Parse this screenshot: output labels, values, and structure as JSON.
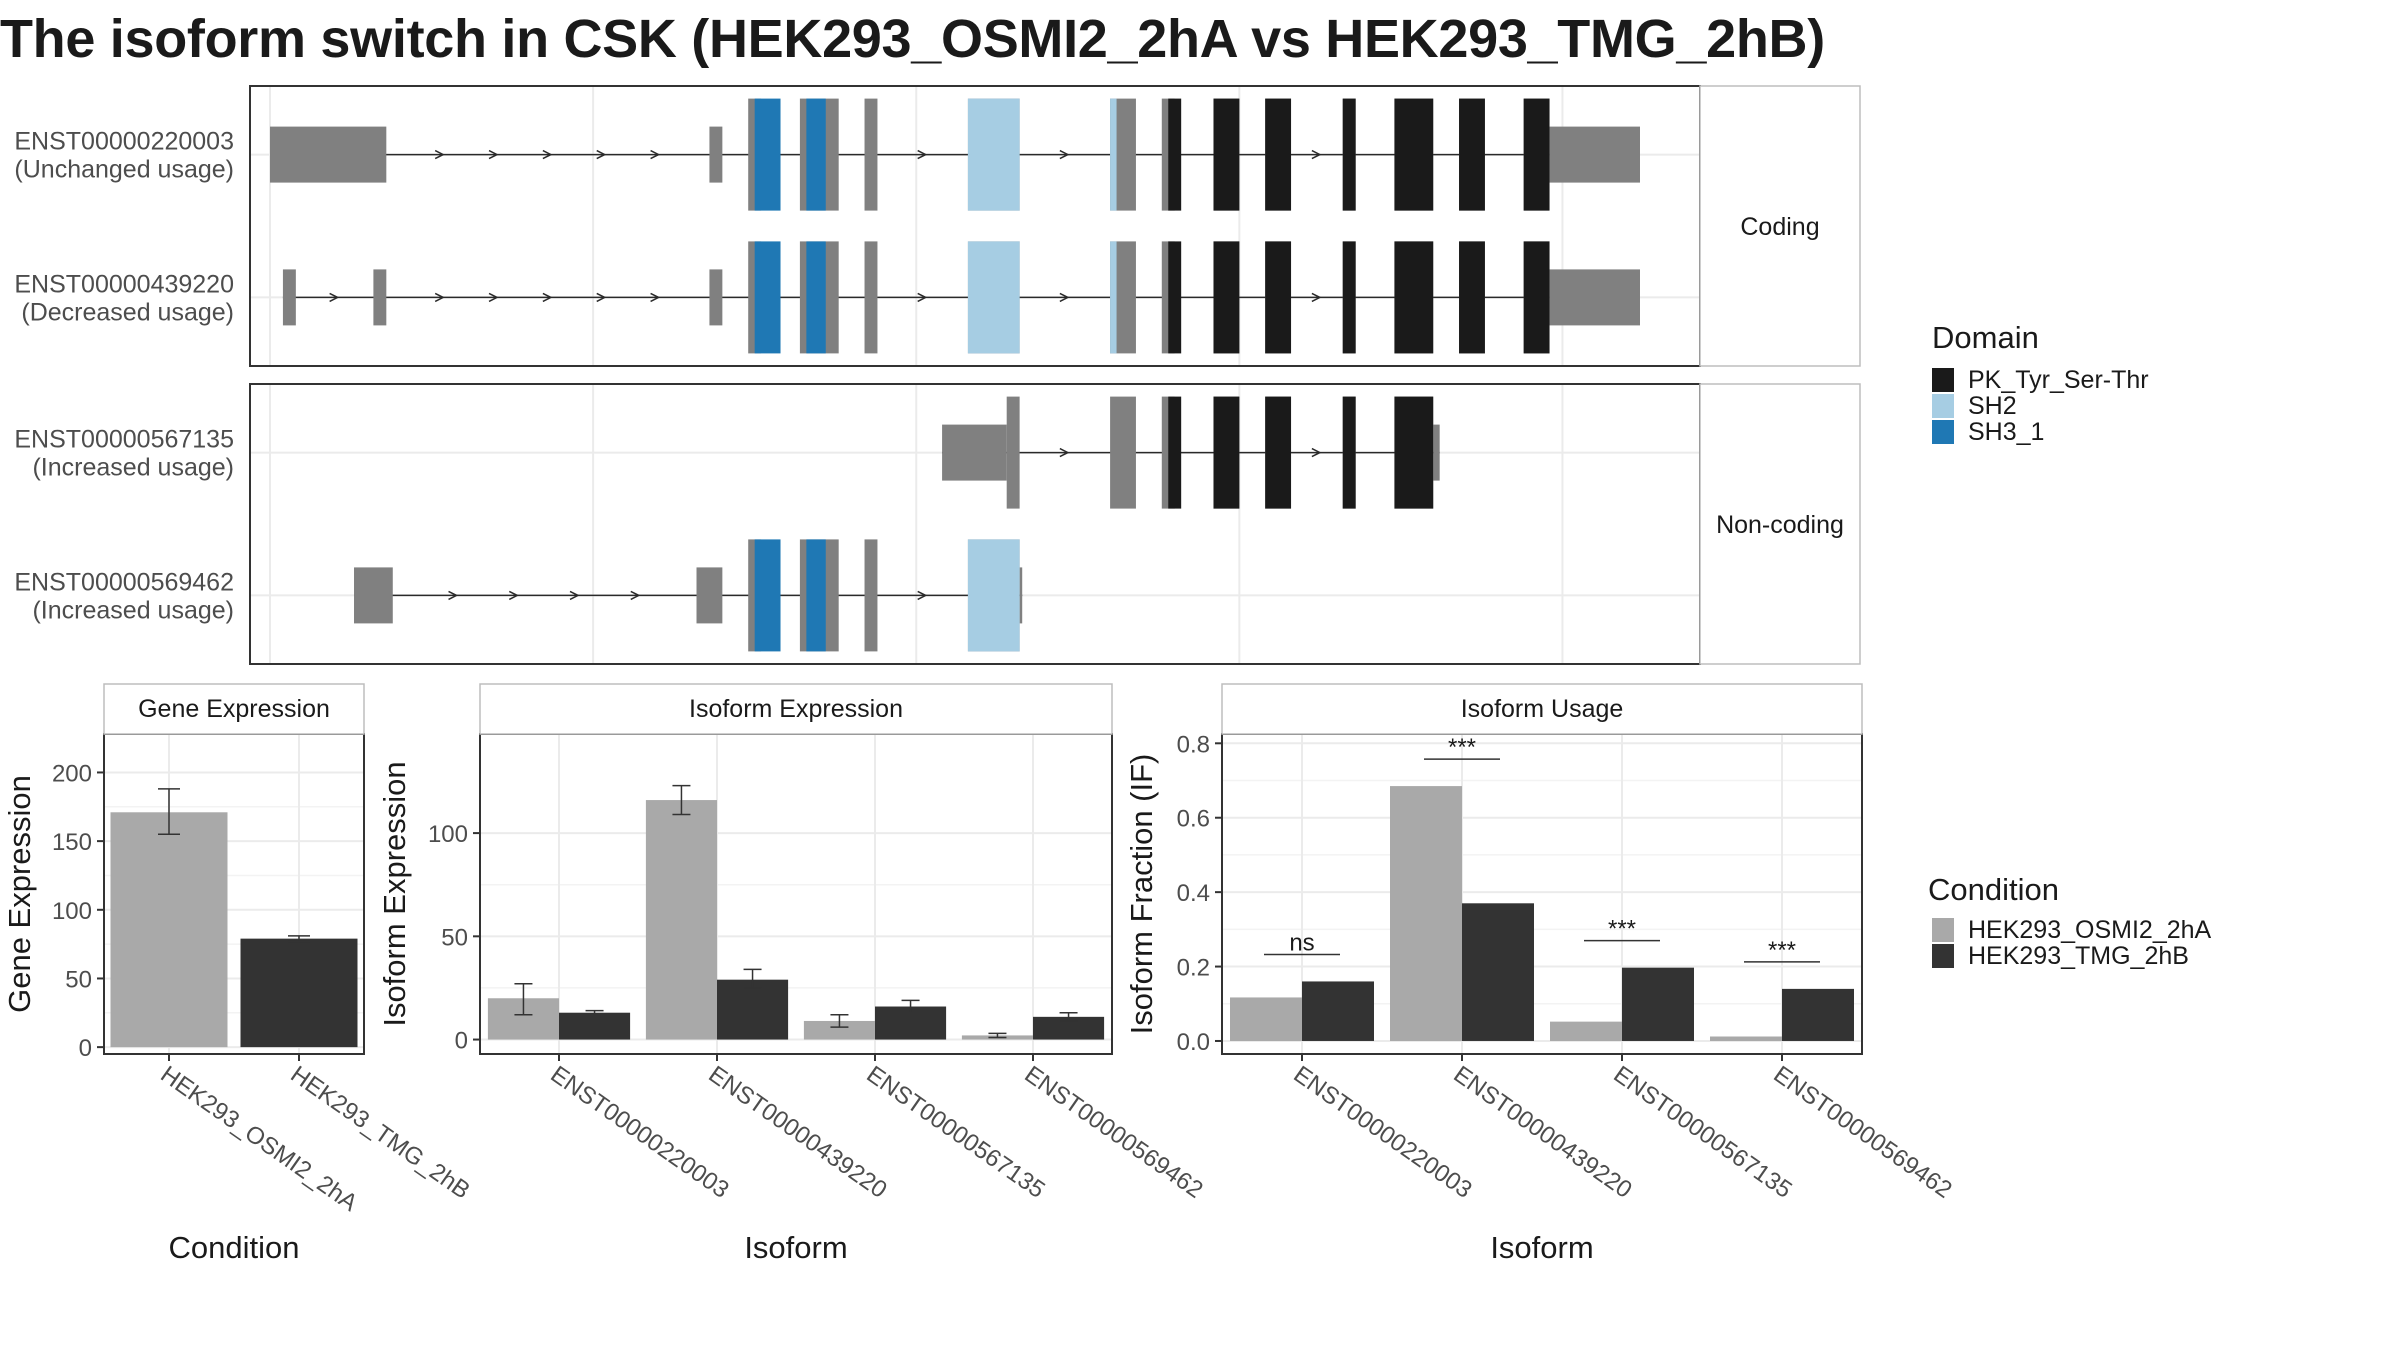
{
  "title": "The isoform switch in CSK (HEK293_OSMI2_2hA vs HEK293_TMG_2hB)",
  "colors": {
    "domain_pk": "#1a1a1a",
    "domain_sh2": "#a6cde3",
    "domain_sh3": "#1f78b4",
    "exon": "#808080",
    "cond_a": "#a9a9a9",
    "cond_b": "#333333",
    "grid": "#ebebeb"
  },
  "chart_data": [
    {
      "type": "gene-structure",
      "panels": [
        {
          "label": "Coding",
          "isoforms": [
            {
              "id": "ENST00000220003",
              "usage": "(Unchanged usage)",
              "exons": [
                [
                  0.05,
                  0.14,
                  "utr"
                ],
                [
                  0.39,
                  0.4,
                  "utr"
                ],
                [
                  0.42,
                  0.43,
                  "cds"
                ],
                [
                  0.46,
                  0.49,
                  "cds"
                ],
                [
                  0.51,
                  0.52,
                  "cds"
                ],
                [
                  0.59,
                  0.63,
                  "cds"
                ],
                [
                  0.7,
                  0.72,
                  "cds"
                ],
                [
                  0.74,
                  0.75,
                  "cds"
                ],
                [
                  0.78,
                  0.8,
                  "cds"
                ],
                [
                  0.82,
                  0.84,
                  "cds"
                ],
                [
                  0.88,
                  0.89,
                  "cds"
                ],
                [
                  0.92,
                  0.95,
                  "cds"
                ],
                [
                  0.97,
                  0.99,
                  "cds"
                ],
                [
                  1.02,
                  1.04,
                  "cds"
                ],
                [
                  1.04,
                  1.11,
                  "utr"
                ]
              ],
              "domains": [
                [
                  0.425,
                  0.445,
                  "SH3_1"
                ],
                [
                  0.465,
                  0.48,
                  "SH3_1"
                ],
                [
                  0.59,
                  0.63,
                  "SH2"
                ],
                [
                  0.7,
                  0.705,
                  "SH2"
                ],
                [
                  0.745,
                  0.755,
                  "PK_Tyr_Ser-Thr"
                ],
                [
                  0.78,
                  0.8,
                  "PK_Tyr_Ser-Thr"
                ],
                [
                  0.82,
                  0.84,
                  "PK_Tyr_Ser-Thr"
                ],
                [
                  0.88,
                  0.89,
                  "PK_Tyr_Ser-Thr"
                ],
                [
                  0.92,
                  0.95,
                  "PK_Tyr_Ser-Thr"
                ],
                [
                  0.97,
                  0.99,
                  "PK_Tyr_Ser-Thr"
                ],
                [
                  1.02,
                  1.04,
                  "PK_Tyr_Ser-Thr"
                ]
              ]
            },
            {
              "id": "ENST00000439220",
              "usage": "(Decreased usage)",
              "exons": [
                [
                  0.06,
                  0.07,
                  "utr"
                ],
                [
                  0.13,
                  0.14,
                  "utr"
                ],
                [
                  0.39,
                  0.4,
                  "utr"
                ],
                [
                  0.42,
                  0.43,
                  "cds"
                ],
                [
                  0.46,
                  0.49,
                  "cds"
                ],
                [
                  0.51,
                  0.52,
                  "cds"
                ],
                [
                  0.59,
                  0.63,
                  "cds"
                ],
                [
                  0.7,
                  0.72,
                  "cds"
                ],
                [
                  0.74,
                  0.75,
                  "cds"
                ],
                [
                  0.78,
                  0.8,
                  "cds"
                ],
                [
                  0.82,
                  0.84,
                  "cds"
                ],
                [
                  0.88,
                  0.89,
                  "cds"
                ],
                [
                  0.92,
                  0.95,
                  "cds"
                ],
                [
                  0.97,
                  0.99,
                  "cds"
                ],
                [
                  1.02,
                  1.04,
                  "cds"
                ],
                [
                  1.04,
                  1.11,
                  "utr"
                ]
              ],
              "domains": [
                [
                  0.425,
                  0.445,
                  "SH3_1"
                ],
                [
                  0.465,
                  0.48,
                  "SH3_1"
                ],
                [
                  0.59,
                  0.63,
                  "SH2"
                ],
                [
                  0.7,
                  0.705,
                  "SH2"
                ],
                [
                  0.745,
                  0.755,
                  "PK_Tyr_Ser-Thr"
                ],
                [
                  0.78,
                  0.8,
                  "PK_Tyr_Ser-Thr"
                ],
                [
                  0.82,
                  0.84,
                  "PK_Tyr_Ser-Thr"
                ],
                [
                  0.88,
                  0.89,
                  "PK_Tyr_Ser-Thr"
                ],
                [
                  0.92,
                  0.95,
                  "PK_Tyr_Ser-Thr"
                ],
                [
                  0.97,
                  0.99,
                  "PK_Tyr_Ser-Thr"
                ],
                [
                  1.02,
                  1.04,
                  "PK_Tyr_Ser-Thr"
                ]
              ]
            }
          ]
        },
        {
          "label": "Non-coding",
          "isoforms": [
            {
              "id": "ENST00000567135",
              "usage": "(Increased usage)",
              "exons": [
                [
                  0.57,
                  0.62,
                  "utr"
                ],
                [
                  0.62,
                  0.63,
                  "cds"
                ],
                [
                  0.7,
                  0.72,
                  "cds"
                ],
                [
                  0.74,
                  0.75,
                  "cds"
                ],
                [
                  0.78,
                  0.8,
                  "cds"
                ],
                [
                  0.82,
                  0.84,
                  "cds"
                ],
                [
                  0.88,
                  0.89,
                  "cds"
                ],
                [
                  0.92,
                  0.95,
                  "cds"
                ],
                [
                  0.95,
                  0.955,
                  "utr"
                ]
              ],
              "domains": [
                [
                  0.745,
                  0.755,
                  "PK_Tyr_Ser-Thr"
                ],
                [
                  0.78,
                  0.8,
                  "PK_Tyr_Ser-Thr"
                ],
                [
                  0.82,
                  0.84,
                  "PK_Tyr_Ser-Thr"
                ],
                [
                  0.88,
                  0.89,
                  "PK_Tyr_Ser-Thr"
                ],
                [
                  0.92,
                  0.95,
                  "PK_Tyr_Ser-Thr"
                ]
              ]
            },
            {
              "id": "ENST00000569462",
              "usage": "(Increased usage)",
              "exons": [
                [
                  0.115,
                  0.145,
                  "utr"
                ],
                [
                  0.38,
                  0.4,
                  "utr"
                ],
                [
                  0.42,
                  0.43,
                  "cds"
                ],
                [
                  0.46,
                  0.49,
                  "cds"
                ],
                [
                  0.51,
                  0.52,
                  "cds"
                ],
                [
                  0.59,
                  0.63,
                  "cds"
                ],
                [
                  0.63,
                  0.632,
                  "utr"
                ]
              ],
              "domains": [
                [
                  0.425,
                  0.445,
                  "SH3_1"
                ],
                [
                  0.465,
                  0.48,
                  "SH3_1"
                ],
                [
                  0.59,
                  0.63,
                  "SH2"
                ]
              ]
            }
          ]
        }
      ],
      "legend": {
        "title": "Domain",
        "items": [
          {
            "name": "PK_Tyr_Ser-Thr",
            "color": "#1a1a1a"
          },
          {
            "name": "SH2",
            "color": "#a6cde3"
          },
          {
            "name": "SH3_1",
            "color": "#1f78b4"
          }
        ]
      }
    },
    {
      "type": "bar",
      "strip": "Gene Expression",
      "xlabel": "Condition",
      "ylabel": "Gene Expression",
      "categories": [
        "HEK293_OSMI2_2hA",
        "HEK293_TMG_2hB"
      ],
      "values": [
        171,
        79
      ],
      "errors": [
        [
          155,
          188
        ],
        [
          77,
          81
        ]
      ],
      "ylim": [
        -5,
        228
      ],
      "yticks": [
        0,
        50,
        100,
        150,
        200
      ]
    },
    {
      "type": "bar",
      "strip": "Isoform Expression",
      "xlabel": "Isoform",
      "ylabel": "Isoform Expression",
      "categories": [
        "ENST00000220003",
        "ENST00000439220",
        "ENST00000567135",
        "ENST00000569462"
      ],
      "series": [
        {
          "name": "HEK293_OSMI2_2hA",
          "values": [
            20,
            116,
            9,
            2
          ],
          "errors": [
            [
              12,
              27
            ],
            [
              109,
              123
            ],
            [
              6,
              12
            ],
            [
              1,
              3
            ]
          ]
        },
        {
          "name": "HEK293_TMG_2hB",
          "values": [
            13,
            29,
            16,
            11
          ],
          "errors": [
            [
              12,
              14
            ],
            [
              25,
              34
            ],
            [
              13,
              19
            ],
            [
              9,
              13
            ]
          ]
        }
      ],
      "ylim": [
        -7,
        148
      ],
      "yticks": [
        0,
        50,
        100
      ]
    },
    {
      "type": "bar",
      "strip": "Isoform Usage",
      "xlabel": "Isoform",
      "ylabel": "Isoform Fraction (IF)",
      "categories": [
        "ENST00000220003",
        "ENST00000439220",
        "ENST00000567135",
        "ENST00000569462"
      ],
      "series": [
        {
          "name": "HEK293_OSMI2_2hA",
          "values": [
            0.117,
            0.685,
            0.052,
            0.012
          ]
        },
        {
          "name": "HEK293_TMG_2hB",
          "values": [
            0.16,
            0.37,
            0.197,
            0.14
          ]
        }
      ],
      "significance": [
        "ns",
        "***",
        "***",
        "***"
      ],
      "ylim": [
        -0.035,
        0.825
      ],
      "yticks": [
        0.0,
        0.2,
        0.4,
        0.6,
        0.8
      ],
      "ytick_labels": [
        "0.0",
        "0.2",
        "0.4",
        "0.6",
        "0.8"
      ]
    }
  ],
  "condition_legend": {
    "title": "Condition",
    "items": [
      {
        "name": "HEK293_OSMI2_2hA",
        "color": "#a9a9a9"
      },
      {
        "name": "HEK293_TMG_2hB",
        "color": "#333333"
      }
    ]
  }
}
